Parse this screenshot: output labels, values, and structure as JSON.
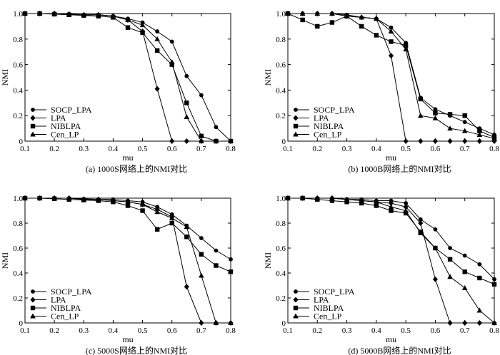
{
  "chart_data": [
    {
      "type": "line",
      "caption": "(a) 1000S网络上的NMI对比",
      "xlabel": "mu",
      "ylabel": "NMI",
      "xlim": [
        0.1,
        0.8
      ],
      "ylim": [
        0,
        1.0
      ],
      "xticks": [
        "0.1",
        "0.2",
        "0.3",
        "0.4",
        "0.5",
        "0.6",
        "0.7",
        "0.8"
      ],
      "yticks": [
        "0",
        "0.2",
        "0.4",
        "0.6",
        "0.8",
        "1.0"
      ],
      "x": [
        0.1,
        0.15,
        0.2,
        0.25,
        0.3,
        0.35,
        0.4,
        0.45,
        0.5,
        0.55,
        0.6,
        0.65,
        0.7,
        0.75,
        0.8
      ],
      "legend_position": "bottom-left",
      "series": [
        {
          "name": "SOCP_LPA",
          "marker": "circle",
          "values": [
            1.0,
            1.0,
            1.0,
            0.995,
            0.99,
            0.99,
            0.98,
            0.96,
            0.93,
            0.86,
            0.78,
            0.51,
            0.36,
            0.11,
            0.0
          ]
        },
        {
          "name": "LPA",
          "marker": "diamond",
          "values": [
            1.0,
            1.0,
            1.0,
            0.995,
            0.99,
            0.99,
            0.98,
            0.95,
            0.86,
            0.41,
            0.0,
            0.0,
            0.0,
            0.0,
            0.0
          ]
        },
        {
          "name": "NIBLPA",
          "marker": "square",
          "values": [
            1.0,
            1.0,
            0.995,
            0.99,
            0.985,
            0.98,
            0.97,
            0.89,
            0.85,
            0.71,
            0.6,
            0.3,
            0.04,
            0.0,
            0.0
          ]
        },
        {
          "name": "Cen_LP",
          "marker": "triangle",
          "values": [
            1.0,
            1.0,
            1.0,
            0.995,
            0.99,
            0.99,
            0.98,
            0.95,
            0.91,
            0.8,
            0.62,
            0.19,
            0.0,
            0.0,
            0.0
          ]
        }
      ]
    },
    {
      "type": "line",
      "caption": "(b) 1000B网络上的NMI对比",
      "xlabel": "mu",
      "ylabel": "NMI",
      "xlim": [
        0.1,
        0.8
      ],
      "ylim": [
        0,
        1.0
      ],
      "xticks": [
        "0.1",
        "0.2",
        "0.3",
        "0.4",
        "0.5",
        "0.6",
        "0.7",
        "0.8"
      ],
      "yticks": [
        "0",
        "0.2",
        "0.4",
        "0.6",
        "0.8",
        "1.0"
      ],
      "x": [
        0.1,
        0.15,
        0.2,
        0.25,
        0.3,
        0.35,
        0.4,
        0.45,
        0.5,
        0.55,
        0.6,
        0.65,
        0.7,
        0.75,
        0.8
      ],
      "legend_position": "bottom-left",
      "series": [
        {
          "name": "SOCP_LPA",
          "marker": "circle",
          "values": [
            1.0,
            1.0,
            1.0,
            1.0,
            0.99,
            0.97,
            0.96,
            0.89,
            0.77,
            0.34,
            0.25,
            0.2,
            0.15,
            0.1,
            0.05
          ]
        },
        {
          "name": "LPA",
          "marker": "diamond",
          "values": [
            1.0,
            1.0,
            1.0,
            1.0,
            0.98,
            0.97,
            0.96,
            0.67,
            0.0,
            0.0,
            0.0,
            0.0,
            0.0,
            0.0,
            0.0
          ]
        },
        {
          "name": "NIBLPA",
          "marker": "square",
          "values": [
            1.0,
            0.95,
            0.9,
            0.93,
            0.98,
            0.9,
            0.83,
            0.78,
            0.75,
            0.33,
            0.22,
            0.21,
            0.2,
            0.08,
            0.03
          ]
        },
        {
          "name": "Cen_LP",
          "marker": "triangle",
          "values": [
            1.0,
            1.0,
            1.0,
            1.0,
            0.98,
            0.97,
            0.96,
            0.86,
            0.72,
            0.2,
            0.18,
            0.1,
            0.08,
            0.05,
            0.02
          ]
        }
      ]
    },
    {
      "type": "line",
      "caption": "(c) 5000S网络上的NMI对比",
      "xlabel": "mu",
      "ylabel": "NMI",
      "xlim": [
        0.1,
        0.8
      ],
      "ylim": [
        0,
        1.0
      ],
      "xticks": [
        "0.1",
        "0.2",
        "0.3",
        "0.4",
        "0.5",
        "0.6",
        "0.7",
        "0.8"
      ],
      "yticks": [
        "0",
        "0.2",
        "0.4",
        "0.6",
        "0.8",
        "1.0"
      ],
      "x": [
        0.1,
        0.15,
        0.2,
        0.25,
        0.3,
        0.35,
        0.4,
        0.45,
        0.5,
        0.55,
        0.6,
        0.65,
        0.7,
        0.75,
        0.8
      ],
      "legend_position": "bottom-left",
      "series": [
        {
          "name": "SOCP_LPA",
          "marker": "circle",
          "values": [
            1.0,
            1.0,
            1.0,
            1.0,
            0.995,
            0.99,
            0.99,
            0.98,
            0.97,
            0.93,
            0.87,
            0.78,
            0.68,
            0.58,
            0.51
          ]
        },
        {
          "name": "LPA",
          "marker": "diamond",
          "values": [
            1.0,
            1.0,
            1.0,
            1.0,
            0.99,
            0.99,
            0.98,
            0.97,
            0.95,
            0.91,
            0.85,
            0.29,
            0.0,
            0.0,
            0.0
          ]
        },
        {
          "name": "NIBLPA",
          "marker": "square",
          "values": [
            1.0,
            1.0,
            0.995,
            0.99,
            0.985,
            0.98,
            0.97,
            0.94,
            0.9,
            0.75,
            0.8,
            0.69,
            0.55,
            0.46,
            0.41
          ]
        },
        {
          "name": "Cen_LP",
          "marker": "triangle",
          "values": [
            1.0,
            1.0,
            1.0,
            1.0,
            0.99,
            0.99,
            0.98,
            0.97,
            0.95,
            0.89,
            0.84,
            0.77,
            0.38,
            0.0,
            0.0
          ]
        }
      ]
    },
    {
      "type": "line",
      "caption": "(d) 5000B网络上的NMI对比",
      "xlabel": "mu",
      "ylabel": "NMI",
      "xlim": [
        0.1,
        0.8
      ],
      "ylim": [
        0,
        1.0
      ],
      "xticks": [
        "0.1",
        "0.2",
        "0.3",
        "0.4",
        "0.5",
        "0.6",
        "0.7",
        "0.8"
      ],
      "yticks": [
        "0",
        "0.2",
        "0.4",
        "0.6",
        "0.8",
        "1.0"
      ],
      "x": [
        0.1,
        0.15,
        0.2,
        0.25,
        0.3,
        0.35,
        0.4,
        0.45,
        0.5,
        0.55,
        0.6,
        0.65,
        0.7,
        0.75,
        0.8
      ],
      "legend_position": "bottom-left",
      "series": [
        {
          "name": "SOCP_LPA",
          "marker": "circle",
          "values": [
            1.0,
            1.0,
            1.0,
            1.0,
            0.99,
            0.99,
            0.98,
            0.98,
            0.96,
            0.83,
            0.75,
            0.6,
            0.54,
            0.47,
            0.35
          ]
        },
        {
          "name": "LPA",
          "marker": "diamond",
          "values": [
            1.0,
            1.0,
            1.0,
            1.0,
            0.99,
            0.98,
            0.97,
            0.96,
            0.93,
            0.8,
            0.35,
            0.0,
            0.0,
            0.0,
            0.0
          ]
        },
        {
          "name": "NIBLPA",
          "marker": "square",
          "values": [
            1.0,
            1.0,
            0.99,
            0.98,
            0.97,
            0.96,
            0.94,
            0.9,
            0.88,
            0.73,
            0.6,
            0.51,
            0.41,
            0.36,
            0.31
          ]
        },
        {
          "name": "Cen_LP",
          "marker": "triangle",
          "values": [
            1.0,
            1.0,
            1.0,
            1.0,
            0.99,
            0.98,
            0.97,
            0.93,
            0.9,
            0.72,
            0.6,
            0.37,
            0.28,
            0.1,
            0.0
          ]
        }
      ]
    }
  ]
}
